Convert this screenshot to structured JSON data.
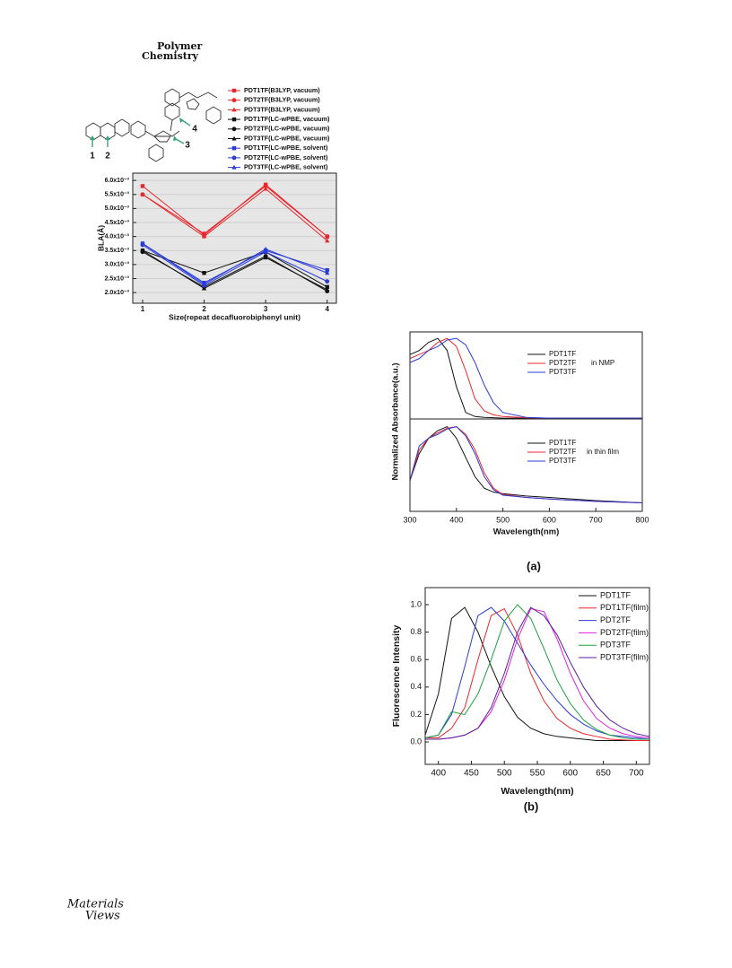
{
  "header": {
    "journal": [
      "Polymer",
      "Chemistry"
    ]
  },
  "figure1": {
    "structure_labels": [
      "1",
      "2",
      "3",
      "4"
    ]
  },
  "chart_data": [
    {
      "type": "line",
      "x": [
        1,
        2,
        3,
        4
      ],
      "xlim": [
        0.84,
        4.15
      ],
      "xticks": [
        1,
        2,
        3,
        4
      ],
      "ylim": [
        0.00162,
        0.00626
      ],
      "yticks": [
        {
          "value": 0.002,
          "label": "2.0x10⁻³"
        },
        {
          "value": 0.0025,
          "label": "2.5x10⁻³"
        },
        {
          "value": 0.003,
          "label": "3.0x10⁻³"
        },
        {
          "value": 0.0035,
          "label": "3.5x10⁻³"
        },
        {
          "value": 0.004,
          "label": "4.0x10⁻³"
        },
        {
          "value": 0.0045,
          "label": "4.5x10⁻³"
        },
        {
          "value": 0.005,
          "label": "5.0x10⁻³"
        },
        {
          "value": 0.0055,
          "label": "5.5x10⁻³"
        },
        {
          "value": 0.006,
          "label": "6.0x10⁻³"
        }
      ],
      "xlabel": "Size(repeat decafluorobiphenyl unit)",
      "ylabel": "BLA(Å)",
      "grid": true,
      "series": [
        {
          "name": "PDT1TF(B3LYP, vacuum)",
          "color": "#e8262b",
          "marker": "square",
          "values": [
            0.0058,
            0.00405,
            0.00585,
            0.004
          ]
        },
        {
          "name": "PDT2TF(B3LYP, vacuum)",
          "color": "#e8262b",
          "marker": "circle",
          "values": [
            0.0055,
            0.0041,
            0.0058,
            0.004
          ]
        },
        {
          "name": "PDT3TF(B3LYP, vacuum)",
          "color": "#e8262b",
          "marker": "triangle",
          "values": [
            0.0055,
            0.004,
            0.0057,
            0.00385
          ]
        },
        {
          "name": "PDT1TF(LC-wPBE, vacuum)",
          "color": "#111111",
          "marker": "square",
          "values": [
            0.0035,
            0.0027,
            0.00345,
            0.0022
          ]
        },
        {
          "name": "PDT2TF(LC-wPBE, vacuum)",
          "color": "#111111",
          "marker": "circle",
          "values": [
            0.00345,
            0.0022,
            0.0033,
            0.00205
          ]
        },
        {
          "name": "PDT3TF(LC-wPBE, vacuum)",
          "color": "#111111",
          "marker": "triangle",
          "values": [
            0.0035,
            0.00215,
            0.00325,
            0.0021
          ]
        },
        {
          "name": "PDT1TF(LC-wPBE, solvent)",
          "color": "#2a3bd8",
          "marker": "square",
          "values": [
            0.00375,
            0.00235,
            0.0035,
            0.0028
          ]
        },
        {
          "name": "PDT2TF(LC-wPBE, solvent)",
          "color": "#2a3bd8",
          "marker": "circle",
          "values": [
            0.0037,
            0.00225,
            0.00345,
            0.0024
          ]
        },
        {
          "name": "PDT3TF(LC-wPBE, solvent)",
          "color": "#2a3bd8",
          "marker": "triangle",
          "values": [
            0.00375,
            0.0023,
            0.00355,
            0.0027
          ]
        }
      ]
    },
    {
      "type": "line",
      "x": [
        300,
        320,
        340,
        360,
        380,
        400,
        420,
        440,
        460,
        480,
        500,
        550,
        600,
        700,
        800
      ],
      "xlim": [
        300,
        800
      ],
      "xticks": [
        300,
        400,
        500,
        600,
        700,
        800
      ],
      "xlabel": "Wavelength(nm)",
      "ylabel": "Normalized Absorbance(a.u.)",
      "panels": [
        {
          "annotation": "in NMP",
          "ylim": [
            0,
            1.08
          ],
          "series": [
            {
              "name": "PDT1TF",
              "color": "#111111",
              "values": [
                0.8,
                0.85,
                0.95,
                1.0,
                0.85,
                0.4,
                0.08,
                0.03,
                0.02,
                0.015,
                0.01,
                0.01,
                0.01,
                0.01,
                0.01
              ]
            },
            {
              "name": "PDT2TF",
              "color": "#e8262b",
              "values": [
                0.75,
                0.8,
                0.85,
                0.95,
                1.0,
                0.9,
                0.6,
                0.25,
                0.1,
                0.05,
                0.03,
                0.015,
                0.01,
                0.01,
                0.01
              ]
            },
            {
              "name": "PDT3TF",
              "color": "#2a3bd8",
              "values": [
                0.7,
                0.75,
                0.85,
                0.9,
                0.98,
                1.0,
                0.92,
                0.7,
                0.42,
                0.2,
                0.08,
                0.02,
                0.01,
                0.01,
                0.01
              ]
            }
          ]
        },
        {
          "annotation": "in thin film",
          "ylim": [
            -0.1,
            1.1
          ],
          "series": [
            {
              "name": "PDT1TF",
              "color": "#111111",
              "values": [
                0.3,
                0.65,
                0.85,
                0.95,
                1.0,
                0.85,
                0.6,
                0.35,
                0.2,
                0.15,
                0.13,
                0.1,
                0.08,
                0.04,
                0.01
              ]
            },
            {
              "name": "PDT2TF",
              "color": "#e8262b",
              "values": [
                0.3,
                0.7,
                0.85,
                0.92,
                0.98,
                1.0,
                0.9,
                0.7,
                0.4,
                0.2,
                0.12,
                0.08,
                0.06,
                0.03,
                0.01
              ]
            },
            {
              "name": "PDT3TF",
              "color": "#2a3bd8",
              "values": [
                0.3,
                0.75,
                0.85,
                0.9,
                0.97,
                1.0,
                0.88,
                0.65,
                0.35,
                0.18,
                0.11,
                0.08,
                0.06,
                0.03,
                0.01
              ]
            }
          ]
        }
      ]
    },
    {
      "type": "line",
      "x": [
        380,
        400,
        420,
        440,
        460,
        480,
        500,
        520,
        540,
        560,
        580,
        600,
        620,
        640,
        660,
        680,
        700,
        720
      ],
      "xlim": [
        380,
        720
      ],
      "xticks": [
        400,
        450,
        500,
        550,
        600,
        650,
        700
      ],
      "ylim": [
        -0.163,
        1.124
      ],
      "yticks": [
        {
          "value": 0,
          "label": "0.0"
        },
        0.2,
        0.4,
        0.6,
        0.8,
        {
          "value": 1,
          "label": "1.0"
        }
      ],
      "xlabel": "Wavelength(nm)",
      "ylabel": "Fluorescence Intensity",
      "series": [
        {
          "name": "PDT1TF",
          "color": "#111111",
          "values": [
            0.05,
            0.35,
            0.9,
            0.98,
            0.8,
            0.55,
            0.33,
            0.18,
            0.1,
            0.06,
            0.04,
            0.03,
            0.02,
            0.01,
            0.01,
            0.01,
            0.01,
            0.01
          ]
        },
        {
          "name": "PDT1TF(film)",
          "color": "#e8262b",
          "values": [
            0.03,
            0.03,
            0.1,
            0.25,
            0.6,
            0.92,
            0.97,
            0.78,
            0.5,
            0.3,
            0.17,
            0.1,
            0.06,
            0.04,
            0.02,
            0.015,
            0.01,
            0.01
          ]
        },
        {
          "name": "PDT2TF",
          "color": "#2a3bd8",
          "values": [
            0.03,
            0.05,
            0.2,
            0.55,
            0.92,
            0.98,
            0.88,
            0.72,
            0.56,
            0.42,
            0.3,
            0.2,
            0.13,
            0.08,
            0.05,
            0.04,
            0.03,
            0.02
          ]
        },
        {
          "name": "PDT2TF(film)",
          "color": "#e020e0",
          "values": [
            0.02,
            0.02,
            0.03,
            0.05,
            0.1,
            0.22,
            0.45,
            0.75,
            0.97,
            0.95,
            0.75,
            0.5,
            0.3,
            0.17,
            0.1,
            0.06,
            0.04,
            0.03
          ]
        },
        {
          "name": "PDT3TF",
          "color": "#20a040",
          "values": [
            0.03,
            0.05,
            0.22,
            0.2,
            0.35,
            0.6,
            0.88,
            1.0,
            0.9,
            0.68,
            0.45,
            0.28,
            0.16,
            0.09,
            0.05,
            0.03,
            0.02,
            0.02
          ]
        },
        {
          "name": "PDT3TF(film)",
          "color": "#5a1f9a",
          "values": [
            0.02,
            0.02,
            0.03,
            0.05,
            0.1,
            0.25,
            0.5,
            0.8,
            0.98,
            0.92,
            0.78,
            0.58,
            0.4,
            0.26,
            0.16,
            0.1,
            0.06,
            0.04
          ]
        }
      ]
    }
  ],
  "captions": [
    "(a)",
    "(b)"
  ],
  "footer": {
    "logo": [
      "Materials",
      "Views"
    ]
  }
}
